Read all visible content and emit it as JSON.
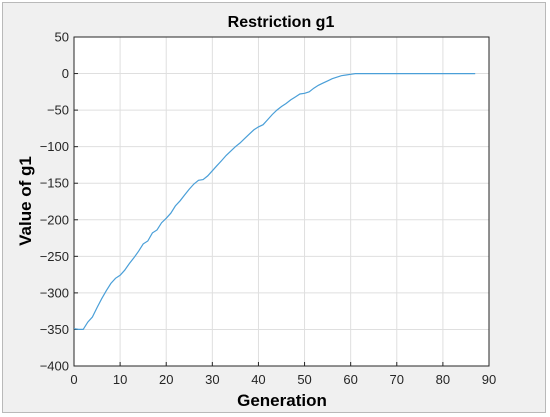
{
  "chart_data": {
    "type": "line",
    "title": "Restriction g1",
    "xlabel": "Generation",
    "ylabel": "Value of g1",
    "xlim": [
      0,
      90
    ],
    "ylim": [
      -400,
      50
    ],
    "xticks": [
      0,
      10,
      20,
      30,
      40,
      50,
      60,
      70,
      80,
      90
    ],
    "yticks": [
      50,
      0,
      -50,
      -100,
      -150,
      -200,
      -250,
      -300,
      -350,
      -400
    ],
    "grid": true,
    "line_color": "#4a9fd8",
    "series": [
      {
        "x": [
          0,
          1,
          2,
          3,
          4,
          5,
          6,
          7,
          8,
          9,
          10,
          11,
          12,
          13,
          14,
          15,
          16,
          17,
          18,
          19,
          20,
          21,
          22,
          23,
          24,
          25,
          26,
          27,
          28,
          29,
          30,
          31,
          32,
          33,
          34,
          35,
          36,
          37,
          38,
          39,
          40,
          41,
          42,
          43,
          44,
          45,
          46,
          47,
          48,
          49,
          50,
          51,
          52,
          53,
          54,
          55,
          56,
          57,
          58,
          59,
          60,
          61,
          62,
          63,
          65,
          70,
          75,
          80,
          85,
          87
        ],
        "y": [
          -349,
          -350,
          -350,
          -340,
          -333,
          -320,
          -308,
          -297,
          -287,
          -280,
          -276,
          -269,
          -260,
          -252,
          -243,
          -233,
          -229,
          -218,
          -214,
          -204,
          -198,
          -191,
          -181,
          -174,
          -166,
          -158,
          -151,
          -146,
          -145,
          -140,
          -133,
          -126,
          -119,
          -112,
          -106,
          -100,
          -95,
          -89,
          -83,
          -77,
          -73,
          -70,
          -63,
          -56,
          -50,
          -45,
          -41,
          -36,
          -32,
          -28,
          -27,
          -25,
          -20,
          -16,
          -13,
          -10,
          -7,
          -5,
          -3,
          -2,
          -1,
          0,
          0,
          0,
          0,
          0,
          0,
          0,
          0,
          0
        ]
      }
    ]
  }
}
